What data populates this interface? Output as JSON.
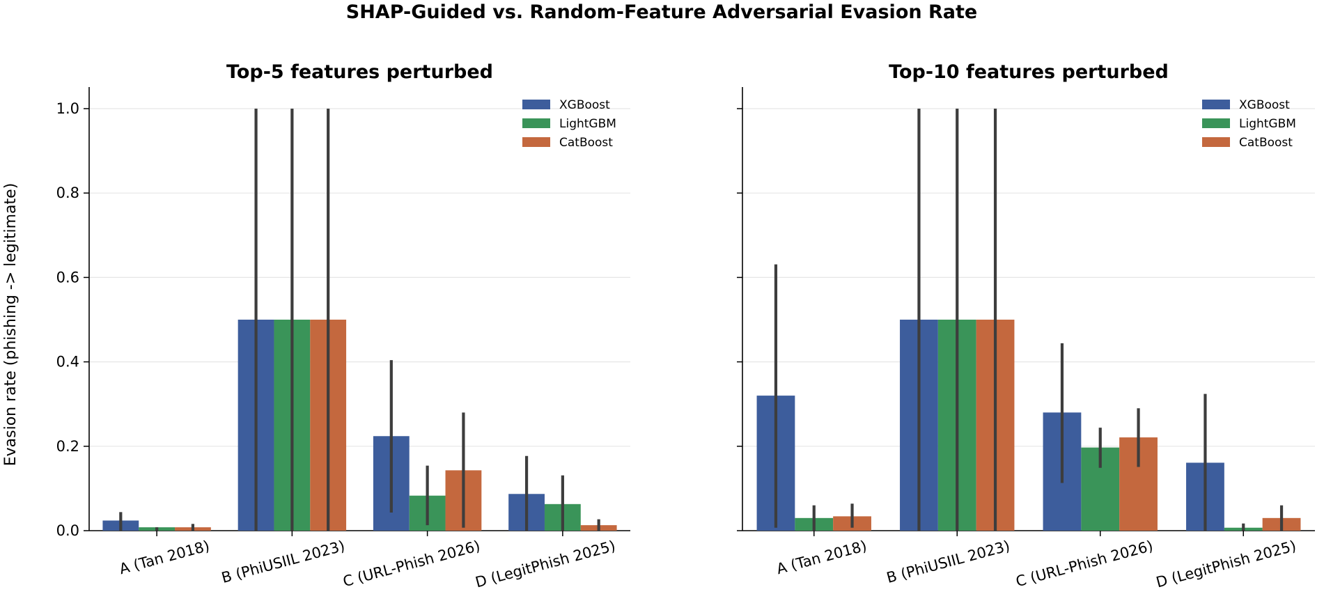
{
  "figure": {
    "title": "SHAP-Guided vs. Random-Feature Adversarial Evasion Rate",
    "ylabel": "Evasion rate (phishing -> legitimate)"
  },
  "colors": {
    "XGBoost": "#3d5d9c",
    "LightGBM": "#3a9459",
    "CatBoost": "#c4683e",
    "errorbar": "#3d3d3d",
    "grid": "#e6e6e6",
    "axis": "#000000"
  },
  "chart_data": [
    {
      "type": "bar",
      "title": "Top-5 features perturbed",
      "xlabel": "",
      "ylabel": "Evasion rate (phishing -> legitimate)",
      "categories": [
        "A (Tan 2018)",
        "B (PhiUSIIL 2023)",
        "C (URL-Phish 2026)",
        "D (LegitPhish 2025)"
      ],
      "ylim": [
        0,
        1.05
      ],
      "yticks": [
        "0.0",
        "0.2",
        "0.4",
        "0.6",
        "0.8",
        "1.0"
      ],
      "grid": "horizontal",
      "legend_position": "top-right",
      "series": [
        {
          "name": "XGBoost",
          "values": [
            0.024,
            0.5,
            0.224,
            0.087
          ],
          "error_low": [
            0.0,
            0.0,
            0.043,
            0.0
          ],
          "error_high": [
            0.044,
            1.0,
            0.404,
            0.177
          ]
        },
        {
          "name": "LightGBM",
          "values": [
            0.008,
            0.5,
            0.083,
            0.063
          ],
          "error_low": [
            0.0,
            0.0,
            0.013,
            0.0
          ],
          "error_high": [
            0.008,
            1.0,
            0.154,
            0.131
          ]
        },
        {
          "name": "CatBoost",
          "values": [
            0.008,
            0.5,
            0.143,
            0.013
          ],
          "error_low": [
            0.0,
            0.0,
            0.007,
            0.0
          ],
          "error_high": [
            0.016,
            1.0,
            0.28,
            0.027
          ]
        }
      ]
    },
    {
      "type": "bar",
      "title": "Top-10 features perturbed",
      "xlabel": "",
      "ylabel": "",
      "categories": [
        "A (Tan 2018)",
        "B (PhiUSIIL 2023)",
        "C (URL-Phish 2026)",
        "D (LegitPhish 2025)"
      ],
      "ylim": [
        0,
        1.05
      ],
      "yticks": [],
      "grid": "horizontal",
      "legend_position": "top-right",
      "series": [
        {
          "name": "XGBoost",
          "values": [
            0.32,
            0.5,
            0.28,
            0.161
          ],
          "error_low": [
            0.007,
            0.0,
            0.113,
            0.0
          ],
          "error_high": [
            0.631,
            1.0,
            0.444,
            0.324
          ]
        },
        {
          "name": "LightGBM",
          "values": [
            0.03,
            0.5,
            0.197,
            0.007
          ],
          "error_low": [
            0.0,
            0.0,
            0.149,
            0.0
          ],
          "error_high": [
            0.06,
            1.0,
            0.244,
            0.017
          ]
        },
        {
          "name": "CatBoost",
          "values": [
            0.034,
            0.5,
            0.221,
            0.03
          ],
          "error_low": [
            0.007,
            0.0,
            0.151,
            0.0
          ],
          "error_high": [
            0.064,
            1.0,
            0.29,
            0.06
          ]
        }
      ]
    }
  ]
}
